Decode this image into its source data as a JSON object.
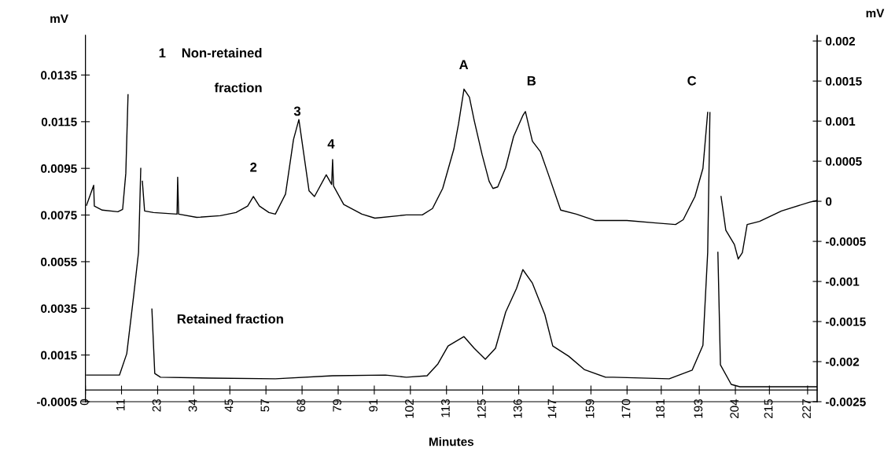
{
  "chart_data": {
    "type": "line",
    "xlabel": "Minutes",
    "ylabel": "mV",
    "y2label": "mV",
    "xlim": [
      0,
      230
    ],
    "ylim": [
      -0.0005,
      0.0152
    ],
    "y2lim": [
      -0.0025,
      0.00207
    ],
    "xticks": [
      0,
      {
        "value": 11.35,
        "label": "11"
      },
      {
        "value": 22.7,
        "label": "23"
      },
      {
        "value": 34.05,
        "label": "34"
      },
      {
        "value": 45.4,
        "label": "45"
      },
      {
        "value": 56.75,
        "label": "57"
      },
      {
        "value": 68.1,
        "label": "68"
      },
      {
        "value": 79.45,
        "label": "79"
      },
      {
        "value": 90.8,
        "label": "91"
      },
      {
        "value": 102.15,
        "label": "102"
      },
      {
        "value": 113.5,
        "label": "113"
      },
      {
        "value": 124.85,
        "label": "125"
      },
      {
        "value": 136.2,
        "label": "136"
      },
      {
        "value": 147,
        "label": "147"
      },
      {
        "value": 158.9,
        "label": "159"
      },
      {
        "value": 170.25,
        "label": "170"
      },
      {
        "value": 181,
        "label": "181"
      },
      {
        "value": 192.95,
        "label": "193"
      },
      {
        "value": 204.3,
        "label": "204"
      },
      {
        "value": 215,
        "label": "215"
      },
      {
        "value": 227,
        "label": "227"
      }
    ],
    "yticks": [
      -0.0005,
      0.0015,
      0.0035,
      0.0055,
      0.0075,
      0.0095,
      0.0115,
      0.0135
    ],
    "y2ticks": [
      -0.0025,
      -0.002,
      -0.0015,
      -0.001,
      -0.0005,
      0,
      0.0005,
      0.001,
      0.0015,
      0.002
    ],
    "grid": false,
    "legend": false,
    "marker": "none",
    "line_style": "solid",
    "series": [
      {
        "color": "#000000",
        "axis": "y2",
        "x": [
          0.35,
          2.6,
          2.8,
          5.3,
          10.2,
          11.7,
          12.7,
          13.4,
          13.9,
          17.2,
          17.9,
          18.6,
          21.4,
          28.8,
          29.0,
          29.3,
          35.0,
          42.4,
          47.3,
          51.0,
          52.8,
          54.7,
          57.7,
          59.7,
          62.9,
          65.4,
          67.1,
          70.3,
          72.0,
          75.7,
          77.4,
          77.7,
          78.0,
          81.2,
          86.9,
          91.0,
          100.9,
          105.9,
          109.1,
          112.3,
          115.8,
          117.3,
          119.0,
          120.7,
          122.2,
          124.7,
          126.9,
          128.1,
          129.6,
          132.1,
          134.6,
          137.5,
          138.3,
          140.5,
          143.0,
          145.4,
          149.4,
          154.3,
          160.3,
          170.2,
          179.3,
          185.5,
          187.9,
          191.6,
          194.1,
          195.6,
          195.8,
          199.3,
          199.8,
          201.3,
          204.0,
          205.2,
          206.5,
          208.0,
          211.9,
          218.8,
          227.7,
          230.0
        ],
        "values": [
          -5e-05,
          0.0002,
          -6e-05,
          -0.00011,
          -0.00013,
          -0.0001,
          0.00035,
          0.00133,
          null,
          null,
          0.00025,
          -0.00012,
          -0.00014,
          -0.00016,
          0.0003,
          -0.00016,
          -0.0002,
          -0.00018,
          -0.00014,
          -6e-05,
          6e-05,
          -6e-05,
          -0.00014,
          -0.00016,
          9e-05,
          0.00077,
          0.00102,
          0.00013,
          6e-05,
          0.00033,
          0.00021,
          0.00052,
          0.00019,
          -4e-05,
          -0.00016,
          -0.00021,
          -0.00017,
          -0.00017,
          -9e-05,
          0.00016,
          0.00065,
          0.00097,
          0.0014,
          0.0013,
          0.00101,
          0.00058,
          0.00025,
          0.00016,
          0.00018,
          0.00042,
          0.00081,
          0.00107,
          0.00112,
          0.00075,
          0.00062,
          0.00035,
          -0.00011,
          -0.00016,
          -0.00024,
          -0.00024,
          -0.00027,
          -0.00029,
          -0.00023,
          6e-05,
          0.00041,
          0.00111,
          null,
          null,
          6e-05,
          -0.00036,
          -0.00054,
          -0.00072,
          -0.00064,
          -0.00029,
          -0.00025,
          -0.00012,
          -1e-05,
          1e-05
        ]
      },
      {
        "color": "#000000",
        "x": [
          0.35,
          10.7,
          13.0,
          15.2,
          16.7,
          17.4,
          18.6,
          20.4,
          20.9,
          21.8,
          23.6,
          39.6,
          59.7,
          77.7,
          94.3,
          100.9,
          107.4,
          110.8,
          114.0,
          119.0,
          122.2,
          125.7,
          128.9,
          132.1,
          135.5,
          137.5,
          140.5,
          144.4,
          146.9,
          151.9,
          156.8,
          163.5,
          165.9,
          183.5,
          190.7,
          194.1,
          195.6,
          196.3,
          196.8,
          198.3,
          198.8,
          199.6,
          203.0,
          205.7,
          230.0
        ],
        "values": [
          0.00064,
          0.00064,
          0.00156,
          0.00408,
          0.0059,
          0.0095,
          null,
          null,
          0.00347,
          0.00071,
          0.00055,
          0.00051,
          0.00048,
          0.00061,
          0.00064,
          0.00055,
          0.00061,
          0.00112,
          0.00189,
          0.00229,
          0.00179,
          0.00132,
          0.00179,
          0.00334,
          0.00435,
          0.00516,
          0.00458,
          0.00324,
          0.00189,
          0.00145,
          0.00088,
          0.00055,
          0.00055,
          0.00048,
          0.00085,
          0.00192,
          0.0059,
          0.01189,
          null,
          null,
          0.0059,
          0.00108,
          0.00024,
          0.00014,
          0.00014
        ]
      }
    ],
    "annotations": [
      "1",
      "Non-retained",
      "fraction",
      "2",
      "3",
      "4",
      "A",
      "B",
      "C",
      "Retained fraction"
    ]
  }
}
